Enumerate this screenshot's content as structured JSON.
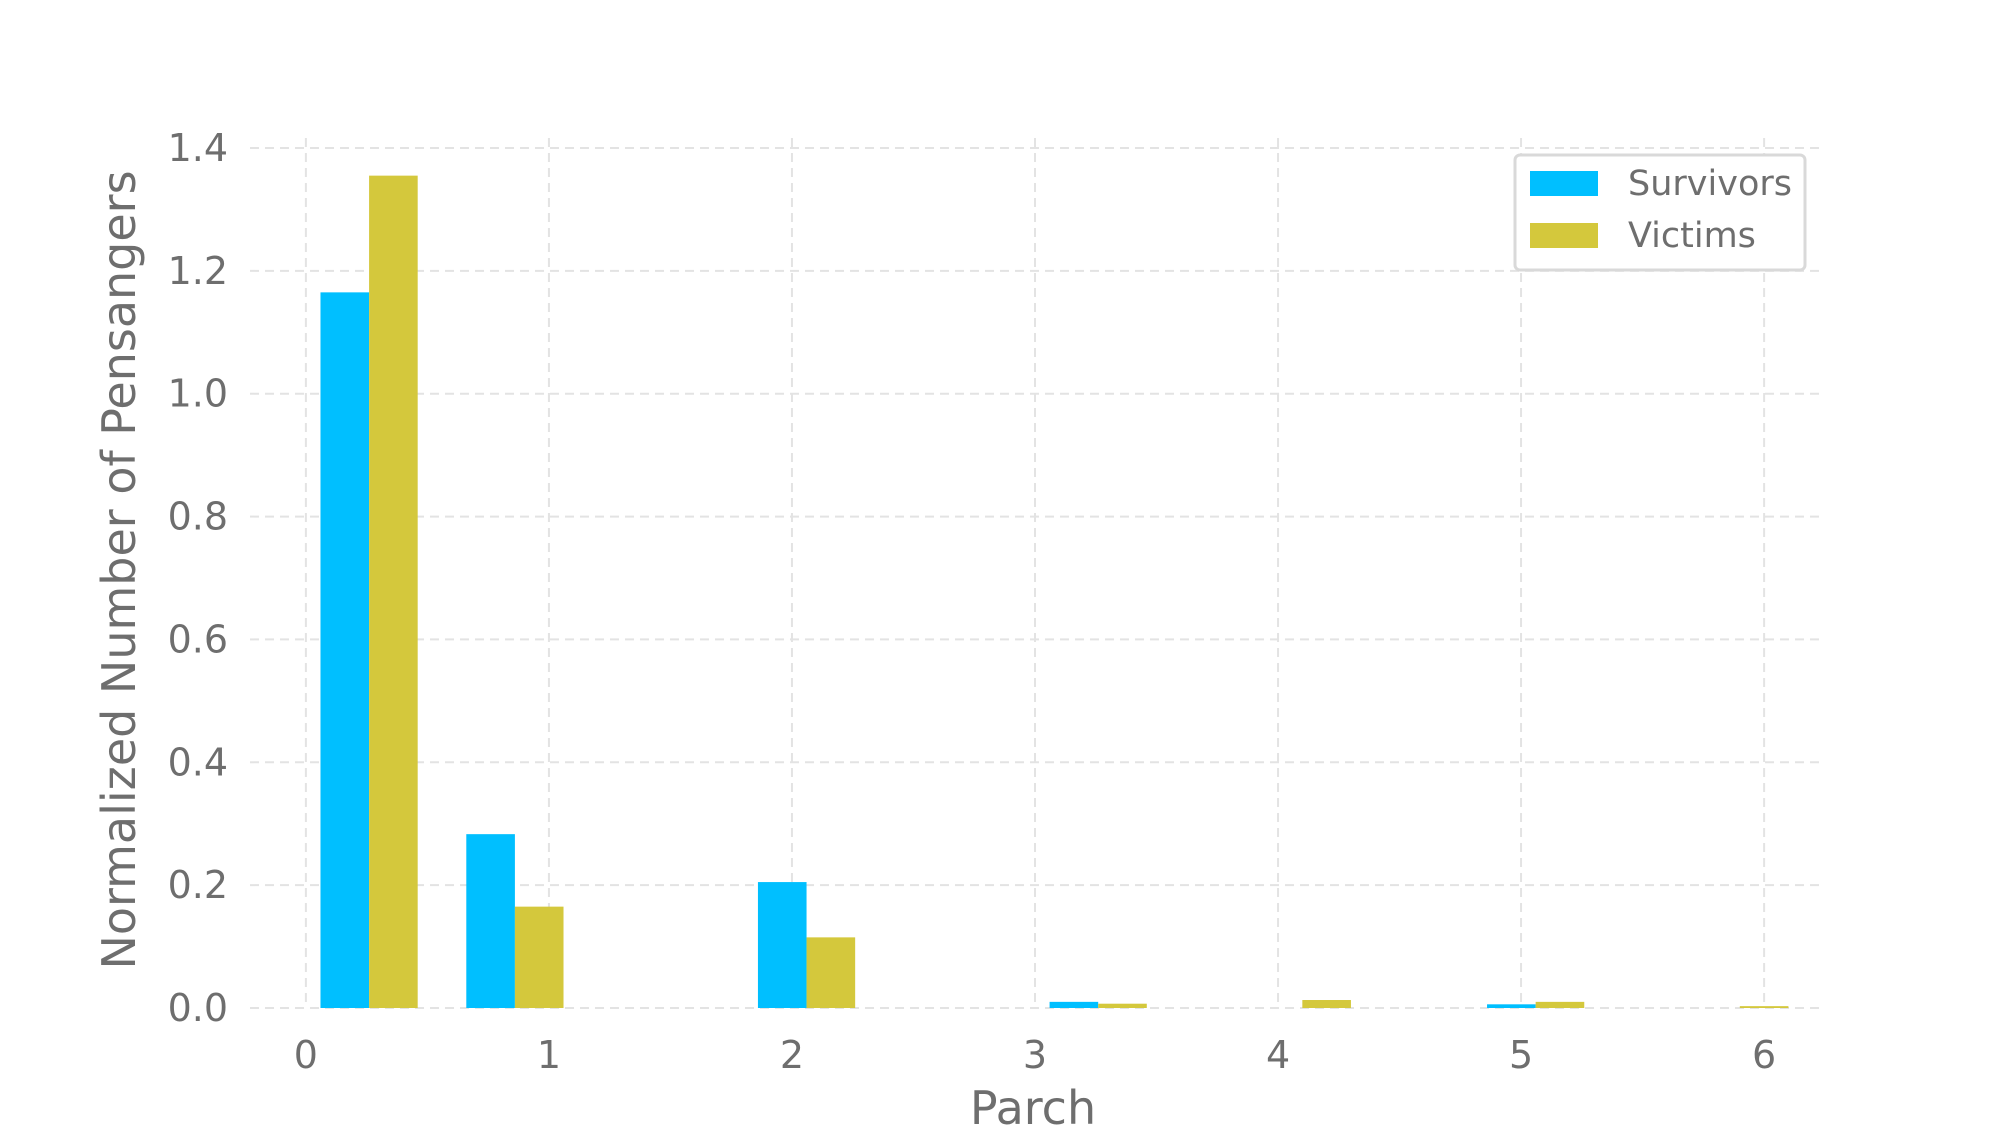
{
  "chart_data": {
    "type": "bar",
    "xlabel": "Parch",
    "ylabel": "Normalized Number of Pensangers",
    "xlim": [
      -0.23,
      6.23
    ],
    "ylim": [
      0,
      1.4
    ],
    "xticks": [
      "0",
      "1",
      "2",
      "3",
      "4",
      "5",
      "6"
    ],
    "yticks": [
      "0.0",
      "0.2",
      "0.4",
      "0.6",
      "0.8",
      "1.0",
      "1.2",
      "1.4"
    ],
    "grid": true,
    "legend_position": "top-right",
    "bin_width": 0.2,
    "bins": [
      0.06,
      0.66,
      1.86,
      3.06,
      3.9,
      4.86,
      5.7
    ],
    "series": [
      {
        "name": "Survivors",
        "color": "#00bfff",
        "values": [
          1.165,
          0.283,
          0.205,
          0.01,
          0,
          0.006,
          0
        ]
      },
      {
        "name": "Victims",
        "color": "#d4c83c",
        "values": [
          1.355,
          0.165,
          0.115,
          0.007,
          0.013,
          0.01,
          0.003
        ]
      }
    ]
  }
}
